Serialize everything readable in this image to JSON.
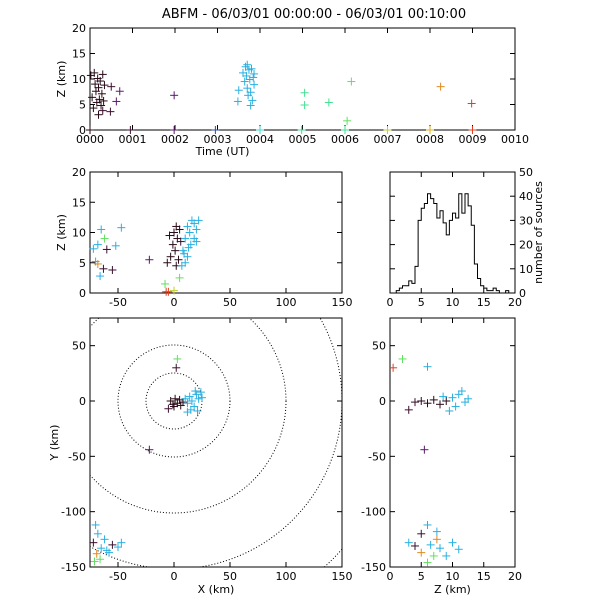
{
  "title": "ABFM - 06/03/01 00:00:00 - 06/03/01 00:10:00",
  "chart_data": [
    {
      "id": "time-height",
      "type": "scatter",
      "xlabel": "Time (UT)",
      "ylabel": "Z (km)",
      "xlim": [
        0,
        10
      ],
      "ylim": [
        0,
        20
      ],
      "xticks": [
        "0000",
        "0001",
        "0002",
        "0003",
        "0004",
        "0005",
        "0006",
        "0007",
        "0008",
        "0009",
        "0010"
      ],
      "yticks": [
        "0",
        "5",
        "10",
        "15",
        "20"
      ],
      "marker": "cross",
      "points": [
        {
          "t": 0.02,
          "z": 10.7,
          "c": "#2a0a18"
        },
        {
          "t": 0.05,
          "z": 6.4,
          "c": "#2a0a18"
        },
        {
          "t": 0.08,
          "z": 4.3,
          "c": "#2a0a18"
        },
        {
          "t": 0.1,
          "z": 11.2,
          "c": "#2a0a18"
        },
        {
          "t": 0.12,
          "z": 9.0,
          "c": "#2a0a18"
        },
        {
          "t": 0.14,
          "z": 7.6,
          "c": "#2a0a18"
        },
        {
          "t": 0.16,
          "z": 5.4,
          "c": "#2a0a18"
        },
        {
          "t": 0.18,
          "z": 10.1,
          "c": "#2a0a18"
        },
        {
          "t": 0.2,
          "z": 8.3,
          "c": "#2a0a18"
        },
        {
          "t": 0.22,
          "z": 6.0,
          "c": "#2a0a18"
        },
        {
          "t": 0.24,
          "z": 9.6,
          "c": "#2a0a18"
        },
        {
          "t": 0.26,
          "z": 4.8,
          "c": "#2a0a18"
        },
        {
          "t": 0.28,
          "z": 7.1,
          "c": "#2a0a18"
        },
        {
          "t": 0.3,
          "z": 10.9,
          "c": "#2a0a18"
        },
        {
          "t": 0.32,
          "z": 5.7,
          "c": "#2a0a18"
        },
        {
          "t": 0.34,
          "z": 8.8,
          "c": "#2a0a18"
        },
        {
          "t": 0.2,
          "z": 3.0,
          "c": "#2a0a18"
        },
        {
          "t": 0.3,
          "z": 3.8,
          "c": "#3b0f2e"
        },
        {
          "t": 0.5,
          "z": 8.5,
          "c": "#3b0f2e"
        },
        {
          "t": 0.48,
          "z": 3.6,
          "c": "#3b0f2e"
        },
        {
          "t": 0.62,
          "z": 5.6,
          "c": "#5a1a6a"
        },
        {
          "t": 0.7,
          "z": 7.6,
          "c": "#5a1a6a"
        },
        {
          "t": 0.0,
          "z": 0.0,
          "c": "#2a0a18"
        },
        {
          "t": 0.95,
          "z": 0.0,
          "c": "#3b0f2e"
        },
        {
          "t": 1.98,
          "z": 6.8,
          "c": "#5a1a6a"
        },
        {
          "t": 1.98,
          "z": 0.0,
          "c": "#5a1a6a"
        },
        {
          "t": 2.95,
          "z": 0.0,
          "c": "#2a4aa8"
        },
        {
          "t": 3.48,
          "z": 5.6,
          "c": "#2ab0e0"
        },
        {
          "t": 3.5,
          "z": 7.8,
          "c": "#2ab0e0"
        },
        {
          "t": 3.6,
          "z": 11.2,
          "c": "#2ab0e0"
        },
        {
          "t": 3.64,
          "z": 9.5,
          "c": "#2ab0e0"
        },
        {
          "t": 3.66,
          "z": 12.4,
          "c": "#2ab0e0"
        },
        {
          "t": 3.68,
          "z": 10.6,
          "c": "#2ab0e0"
        },
        {
          "t": 3.7,
          "z": 8.2,
          "c": "#2ab0e0"
        },
        {
          "t": 3.72,
          "z": 6.8,
          "c": "#2ab0e0"
        },
        {
          "t": 3.74,
          "z": 11.8,
          "c": "#2ab0e0"
        },
        {
          "t": 3.76,
          "z": 9.9,
          "c": "#2ab0e0"
        },
        {
          "t": 3.78,
          "z": 7.4,
          "c": "#2ab0e0"
        },
        {
          "t": 3.8,
          "z": 12.0,
          "c": "#2ab0e0"
        },
        {
          "t": 3.82,
          "z": 5.8,
          "c": "#2ab0e0"
        },
        {
          "t": 3.84,
          "z": 10.3,
          "c": "#2ab0e0"
        },
        {
          "t": 3.86,
          "z": 8.9,
          "c": "#2ab0e0"
        },
        {
          "t": 3.78,
          "z": 4.8,
          "c": "#2ab0e0"
        },
        {
          "t": 3.7,
          "z": 12.8,
          "c": "#2ab0e0"
        },
        {
          "t": 3.86,
          "z": 11.0,
          "c": "#2ab0e0"
        },
        {
          "t": 4.0,
          "z": 0.0,
          "c": "#40d8d0"
        },
        {
          "t": 4.98,
          "z": 0.0,
          "c": "#40e090"
        },
        {
          "t": 5.05,
          "z": 7.3,
          "c": "#40e090"
        },
        {
          "t": 5.05,
          "z": 4.9,
          "c": "#40e090"
        },
        {
          "t": 5.62,
          "z": 5.4,
          "c": "#40e090"
        },
        {
          "t": 6.0,
          "z": 0.0,
          "c": "#40e090"
        },
        {
          "t": 6.05,
          "z": 1.8,
          "c": "#60e060"
        },
        {
          "t": 6.15,
          "z": 9.5,
          "c": "#60e060"
        },
        {
          "t": 7.0,
          "z": 0.0,
          "c": "#c0d030"
        },
        {
          "t": 8.0,
          "z": 0.0,
          "c": "#e0b020"
        },
        {
          "t": 8.25,
          "z": 8.5,
          "c": "#e08a20"
        },
        {
          "t": 9.0,
          "z": 0.0,
          "c": "#e04020"
        },
        {
          "t": 8.98,
          "z": 5.2,
          "c": "#e03a20"
        }
      ]
    },
    {
      "id": "x-height",
      "type": "scatter",
      "xlabel": "",
      "ylabel": "Z (km)",
      "xlim": [
        -75,
        150
      ],
      "ylim": [
        0,
        20
      ],
      "xticks": [
        "-50",
        "0",
        "50",
        "100",
        "150"
      ],
      "yticks": [
        "0",
        "5",
        "10",
        "15",
        "20"
      ],
      "marker": "cross",
      "points": [
        {
          "x": -3,
          "z": 6,
          "c": "#2a0a18"
        },
        {
          "x": -1,
          "z": 8,
          "c": "#2a0a18"
        },
        {
          "x": 0,
          "z": 10,
          "c": "#2a0a18"
        },
        {
          "x": 1,
          "z": 7,
          "c": "#2a0a18"
        },
        {
          "x": 2,
          "z": 11,
          "c": "#2a0a18"
        },
        {
          "x": 3,
          "z": 9,
          "c": "#2a0a18"
        },
        {
          "x": 4,
          "z": 5.5,
          "c": "#2a0a18"
        },
        {
          "x": 5,
          "z": 10.5,
          "c": "#2a0a18"
        },
        {
          "x": -4,
          "z": 9.5,
          "c": "#2a0a18"
        },
        {
          "x": 6,
          "z": 8.5,
          "c": "#3b0f2e"
        },
        {
          "x": -6,
          "z": 5,
          "c": "#2a0a18"
        },
        {
          "x": 2,
          "z": 4.5,
          "c": "#2a0a18"
        },
        {
          "x": 8,
          "z": 7,
          "c": "#2ab0e0"
        },
        {
          "x": 10,
          "z": 9,
          "c": "#2ab0e0"
        },
        {
          "x": 12,
          "z": 11,
          "c": "#2ab0e0"
        },
        {
          "x": 14,
          "z": 10,
          "c": "#2ab0e0"
        },
        {
          "x": 16,
          "z": 12,
          "c": "#2ab0e0"
        },
        {
          "x": 18,
          "z": 11.5,
          "c": "#2ab0e0"
        },
        {
          "x": 20,
          "z": 10.5,
          "c": "#2ab0e0"
        },
        {
          "x": 22,
          "z": 12,
          "c": "#2ab0e0"
        },
        {
          "x": 15,
          "z": 8,
          "c": "#2ab0e0"
        },
        {
          "x": 12,
          "z": 6,
          "c": "#2ab0e0"
        },
        {
          "x": 10,
          "z": 5,
          "c": "#2ab0e0"
        },
        {
          "x": 9,
          "z": 6.5,
          "c": "#2ab0e0"
        },
        {
          "x": 13,
          "z": 7.5,
          "c": "#2ab0e0"
        },
        {
          "x": 18,
          "z": 9,
          "c": "#2ab0e0"
        },
        {
          "x": 20,
          "z": 8.5,
          "c": "#2ab0e0"
        },
        {
          "x": 7,
          "z": 4.5,
          "c": "#2ab0e0"
        },
        {
          "x": -65,
          "z": 10.5,
          "c": "#2ab0e0"
        },
        {
          "x": -68,
          "z": 8,
          "c": "#2ab0e0"
        },
        {
          "x": -52,
          "z": 7.8,
          "c": "#2ab0e0"
        },
        {
          "x": -47,
          "z": 10.8,
          "c": "#2ab0e0"
        },
        {
          "x": -60,
          "z": 7.2,
          "c": "#3b0f2e"
        },
        {
          "x": -72,
          "z": 7.3,
          "c": "#2ab0e0"
        },
        {
          "x": -70,
          "z": 5.2,
          "c": "#2ab0e0"
        },
        {
          "x": -63,
          "z": 4.0,
          "c": "#3b0f2e"
        },
        {
          "x": -55,
          "z": 3.8,
          "c": "#3b0f2e"
        },
        {
          "x": -66,
          "z": 2.8,
          "c": "#2ab0e0"
        },
        {
          "x": -62,
          "z": 9.0,
          "c": "#60e060"
        },
        {
          "x": -68,
          "z": 4.8,
          "c": "#e08a20"
        },
        {
          "x": -22,
          "z": 5.5,
          "c": "#5a1a6a"
        },
        {
          "x": -8,
          "z": 1.5,
          "c": "#60e060"
        },
        {
          "x": -7,
          "z": 0.2,
          "c": "#e04020"
        },
        {
          "x": -5,
          "z": 0.2,
          "c": "#e04020"
        },
        {
          "x": 5,
          "z": 2.5,
          "c": "#60e060"
        },
        {
          "x": 0,
          "z": 0.4,
          "c": "#c0d030"
        }
      ]
    },
    {
      "id": "altitude-histogram",
      "type": "histogram",
      "xlabel": "",
      "ylabel": "number of sources",
      "xlim": [
        0,
        20
      ],
      "ylim": [
        0,
        50
      ],
      "xticks": [
        "0",
        "5",
        "10",
        "15",
        "20"
      ],
      "yticks": [
        "0",
        "10",
        "20",
        "30",
        "40",
        "50"
      ],
      "bin_width": 0.5,
      "bin_start": 1.0,
      "counts": [
        1,
        2,
        3,
        3,
        5,
        4,
        11,
        30,
        35,
        37,
        41,
        39,
        37,
        31,
        34,
        29,
        24,
        30,
        33,
        31,
        41,
        33,
        41,
        36,
        28,
        12,
        6,
        3,
        2,
        1,
        1,
        2,
        1,
        0,
        0,
        1,
        0,
        0
      ]
    },
    {
      "id": "plan-view",
      "type": "scatter",
      "xlabel": "X (km)",
      "ylabel": "Y (km)",
      "xlim": [
        -75,
        150
      ],
      "ylim": [
        -150,
        75
      ],
      "xticks": [
        "-50",
        "0",
        "50",
        "100",
        "150"
      ],
      "yticks": [
        "-150",
        "-100",
        "-50",
        "0",
        "50"
      ],
      "range_rings_km": [
        25,
        50,
        100,
        150,
        200
      ],
      "marker": "cross",
      "points": [
        {
          "x": -3,
          "y": 0,
          "c": "#2a0a18"
        },
        {
          "x": -1,
          "y": -3,
          "c": "#2a0a18"
        },
        {
          "x": 1,
          "y": 2,
          "c": "#2a0a18"
        },
        {
          "x": 3,
          "y": -2,
          "c": "#2a0a18"
        },
        {
          "x": 5,
          "y": 1,
          "c": "#2a0a18"
        },
        {
          "x": 6,
          "y": -4,
          "c": "#2a0a18"
        },
        {
          "x": 8,
          "y": -1,
          "c": "#2a0a18"
        },
        {
          "x": -5,
          "y": -7,
          "c": "#3b0f2e"
        },
        {
          "x": 0,
          "y": -5,
          "c": "#2a0a18"
        },
        {
          "x": 10,
          "y": 2,
          "c": "#2ab0e0"
        },
        {
          "x": 12,
          "y": -2,
          "c": "#2ab0e0"
        },
        {
          "x": 14,
          "y": 4,
          "c": "#2ab0e0"
        },
        {
          "x": 16,
          "y": 0,
          "c": "#2ab0e0"
        },
        {
          "x": 18,
          "y": -5,
          "c": "#2ab0e0"
        },
        {
          "x": 20,
          "y": 6,
          "c": "#2ab0e0"
        },
        {
          "x": 22,
          "y": 2,
          "c": "#2ab0e0"
        },
        {
          "x": 24,
          "y": 8,
          "c": "#2ab0e0"
        },
        {
          "x": 21,
          "y": -9,
          "c": "#2ab0e0"
        },
        {
          "x": 19,
          "y": 9,
          "c": "#2ab0e0"
        },
        {
          "x": 25,
          "y": 3,
          "c": "#2ab0e0"
        },
        {
          "x": 15,
          "y": -8,
          "c": "#2ab0e0"
        },
        {
          "x": 12,
          "y": -10,
          "c": "#2ab0e0"
        },
        {
          "x": 2,
          "y": 30,
          "c": "#3b0f2e"
        },
        {
          "x": 3,
          "y": 38,
          "c": "#60e060"
        },
        {
          "x": -22,
          "y": -44,
          "c": "#5a1a6a"
        },
        {
          "x": -70,
          "y": -112,
          "c": "#2ab0e0"
        },
        {
          "x": -68,
          "y": -120,
          "c": "#2ab0e0"
        },
        {
          "x": -72,
          "y": -128,
          "c": "#3b0f2e"
        },
        {
          "x": -65,
          "y": -133,
          "c": "#2ab0e0"
        },
        {
          "x": -60,
          "y": -135,
          "c": "#2ab0e0"
        },
        {
          "x": -55,
          "y": -130,
          "c": "#3b0f2e"
        },
        {
          "x": -50,
          "y": -132,
          "c": "#2ab0e0"
        },
        {
          "x": -47,
          "y": -128,
          "c": "#2ab0e0"
        },
        {
          "x": -66,
          "y": -143,
          "c": "#60e060"
        },
        {
          "x": -69,
          "y": -138,
          "c": "#e08a20"
        },
        {
          "x": -71,
          "y": -145,
          "c": "#60e060"
        },
        {
          "x": -58,
          "y": -137,
          "c": "#2ab0e0"
        },
        {
          "x": -62,
          "y": -125,
          "c": "#2ab0e0"
        }
      ]
    },
    {
      "id": "z-y-view",
      "type": "scatter",
      "xlabel": "Z (km)",
      "ylabel": "",
      "xlim": [
        0,
        20
      ],
      "ylim": [
        -150,
        75
      ],
      "xticks": [
        "0",
        "5",
        "10",
        "15",
        "20"
      ],
      "yticks": [
        "-150",
        "-100",
        "-50",
        "0",
        "50"
      ],
      "marker": "cross",
      "points": [
        {
          "z": 5,
          "y": 0,
          "c": "#2a0a18"
        },
        {
          "z": 6,
          "y": -2,
          "c": "#2a0a18"
        },
        {
          "z": 7,
          "y": 1,
          "c": "#2a0a18"
        },
        {
          "z": 8,
          "y": -3,
          "c": "#2a0a18"
        },
        {
          "z": 9,
          "y": 0,
          "c": "#2a0a18"
        },
        {
          "z": 4,
          "y": -1,
          "c": "#3b0f2e"
        },
        {
          "z": 3,
          "y": -8,
          "c": "#3b0f2e"
        },
        {
          "z": 10,
          "y": 3,
          "c": "#2ab0e0"
        },
        {
          "z": 11,
          "y": 6,
          "c": "#2ab0e0"
        },
        {
          "z": 12,
          "y": -1,
          "c": "#2ab0e0"
        },
        {
          "z": 10.5,
          "y": -5,
          "c": "#2ab0e0"
        },
        {
          "z": 11.5,
          "y": 9,
          "c": "#2ab0e0"
        },
        {
          "z": 9.5,
          "y": -9,
          "c": "#2ab0e0"
        },
        {
          "z": 12.5,
          "y": 2,
          "c": "#2ab0e0"
        },
        {
          "z": 8.5,
          "y": 4,
          "c": "#2ab0e0"
        },
        {
          "z": 0.5,
          "y": 30,
          "c": "#e04020"
        },
        {
          "z": 2,
          "y": 38,
          "c": "#60e060"
        },
        {
          "z": 6,
          "y": 31,
          "c": "#2ab0e0"
        },
        {
          "z": 5.5,
          "y": -44,
          "c": "#5a1a6a"
        },
        {
          "z": 6,
          "y": -112,
          "c": "#2ab0e0"
        },
        {
          "z": 7.5,
          "y": -118,
          "c": "#2ab0e0"
        },
        {
          "z": 5,
          "y": -120,
          "c": "#3b0f2e"
        },
        {
          "z": 3,
          "y": -128,
          "c": "#2ab0e0"
        },
        {
          "z": 4,
          "y": -131,
          "c": "#3b0f2e"
        },
        {
          "z": 6.5,
          "y": -130,
          "c": "#2ab0e0"
        },
        {
          "z": 8,
          "y": -133,
          "c": "#2ab0e0"
        },
        {
          "z": 10,
          "y": -128,
          "c": "#2ab0e0"
        },
        {
          "z": 11,
          "y": -134,
          "c": "#2ab0e0"
        },
        {
          "z": 5,
          "y": -137,
          "c": "#e08a20"
        },
        {
          "z": 7,
          "y": -140,
          "c": "#60e060"
        },
        {
          "z": 6,
          "y": -146,
          "c": "#60e060"
        },
        {
          "z": 9,
          "y": -140,
          "c": "#2ab0e0"
        },
        {
          "z": 7.5,
          "y": -125,
          "c": "#e08a20"
        }
      ]
    }
  ]
}
